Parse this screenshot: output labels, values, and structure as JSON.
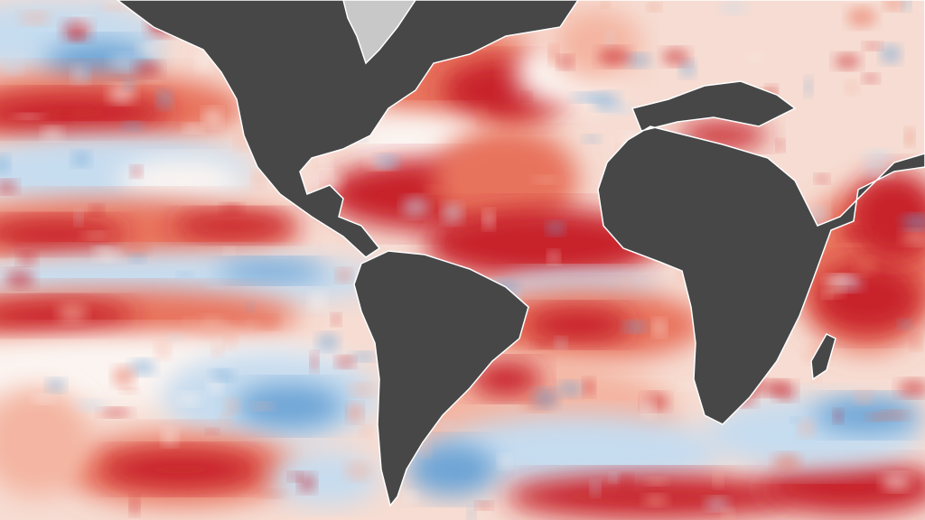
{
  "map": {
    "colors": {
      "land": "#474747",
      "ice": "#c8c8c8",
      "ocean_base": "#f6dcd2",
      "strong_warm": "#c8202a",
      "warm": "#e8735d",
      "light_warm": "#f4b5a2",
      "neutral": "#fbf4f1",
      "light_cool": "#c6dcef",
      "cool": "#6ea5d6",
      "strong_cool": "#2f73b8"
    }
  }
}
